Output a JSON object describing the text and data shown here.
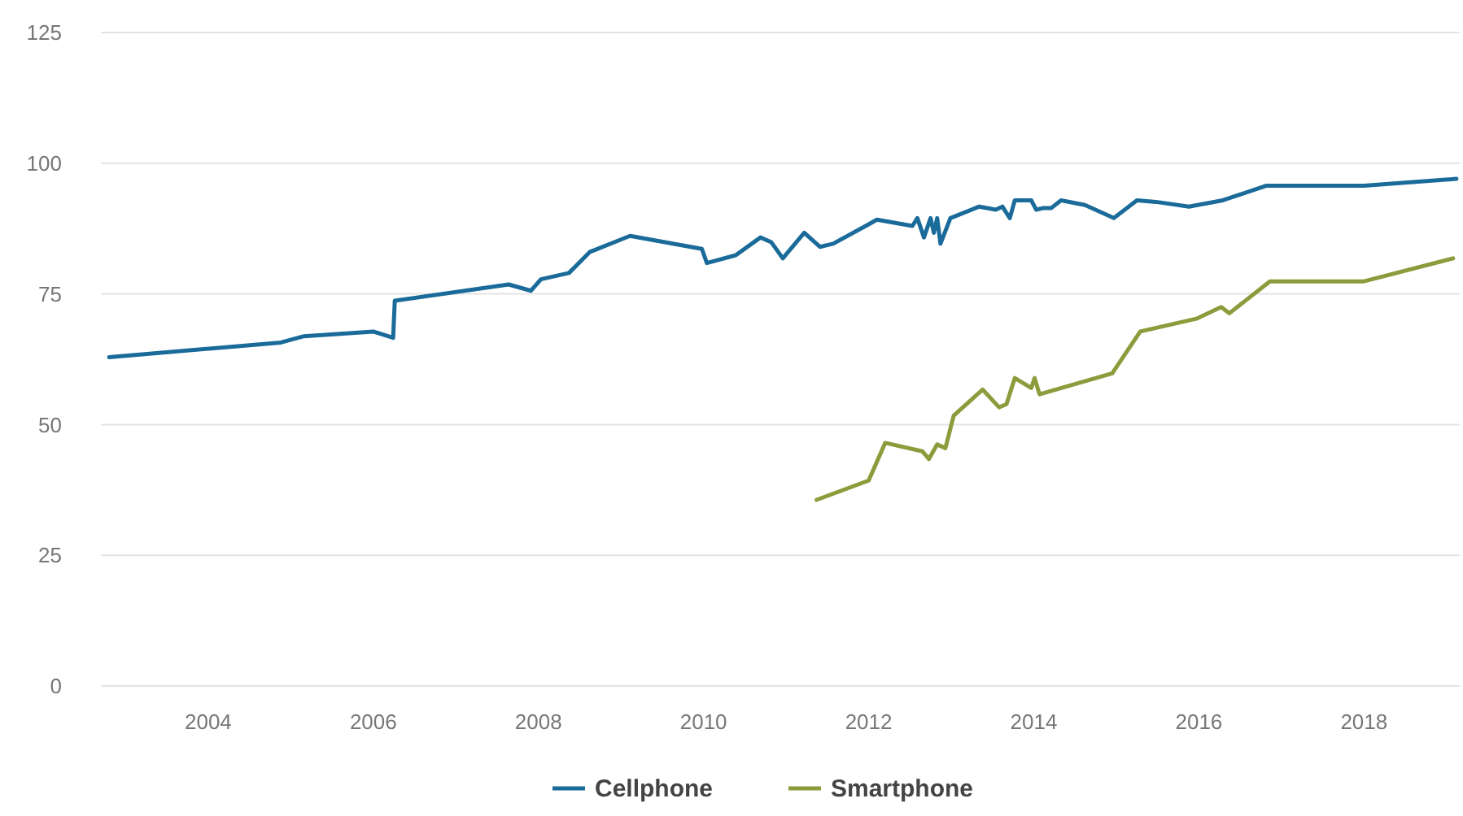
{
  "chart_data": {
    "type": "line",
    "xlim": [
      2002.7,
      2019.16
    ],
    "xticks": [
      2004,
      2006,
      2008,
      2010,
      2012,
      2014,
      2016,
      2018
    ],
    "ylim": [
      0,
      125
    ],
    "yticks": [
      0,
      25,
      50,
      75,
      100,
      125
    ],
    "grid": "y",
    "legend": "bottom",
    "marker": "none",
    "line_style": "solid",
    "series": [
      {
        "name": "Cellphone",
        "color": "#1a6b9a",
        "x": [
          2002.8,
          2004.88,
          2005.16,
          2006.0,
          2006.24,
          2006.26,
          2007.64,
          2007.91,
          2008.03,
          2008.37,
          2008.62,
          2009.11,
          2009.98,
          2010.04,
          2010.39,
          2010.69,
          2010.82,
          2010.96,
          2011.22,
          2011.41,
          2011.57,
          2012.0,
          2012.1,
          2012.53,
          2012.59,
          2012.67,
          2012.75,
          2012.79,
          2012.83,
          2012.87,
          2012.99,
          2013.34,
          2013.54,
          2013.62,
          2013.71,
          2013.77,
          2013.97,
          2014.03,
          2014.11,
          2014.21,
          2014.33,
          2014.62,
          2014.97,
          2015.25,
          2015.48,
          2015.88,
          2016.29,
          2016.82,
          2018.0,
          2019.12
        ],
        "values": [
          62.9,
          65.7,
          66.9,
          67.8,
          66.6,
          73.7,
          76.8,
          75.6,
          77.8,
          79,
          83,
          86.1,
          83.6,
          80.9,
          82.4,
          85.8,
          84.9,
          81.8,
          86.7,
          84,
          84.6,
          88.3,
          89.2,
          88,
          89.5,
          85.8,
          89.5,
          86.7,
          89.5,
          84.6,
          89.5,
          91.7,
          91.1,
          91.7,
          89.5,
          92.9,
          92.9,
          91.1,
          91.4,
          91.4,
          92.9,
          92,
          89.5,
          92.9,
          92.6,
          91.7,
          92.9,
          95.7,
          95.7,
          97
        ]
      },
      {
        "name": "Smartphone",
        "color": "#8c9c3c",
        "x": [
          2011.37,
          2012.0,
          2012.2,
          2012.65,
          2012.73,
          2012.83,
          2012.93,
          2013.03,
          2013.38,
          2013.58,
          2013.67,
          2013.77,
          2013.97,
          2014.01,
          2014.07,
          2014.95,
          2015.29,
          2015.98,
          2016.27,
          2016.37,
          2016.86,
          2018.0,
          2019.08
        ],
        "values": [
          35.6,
          39.3,
          46.5,
          44.9,
          43.4,
          46.2,
          45.5,
          51.7,
          56.7,
          53.3,
          53.9,
          58.9,
          57,
          58.9,
          55.8,
          59.8,
          67.8,
          70.3,
          72.5,
          71.3,
          77.4,
          77.4,
          81.8
        ]
      }
    ]
  }
}
